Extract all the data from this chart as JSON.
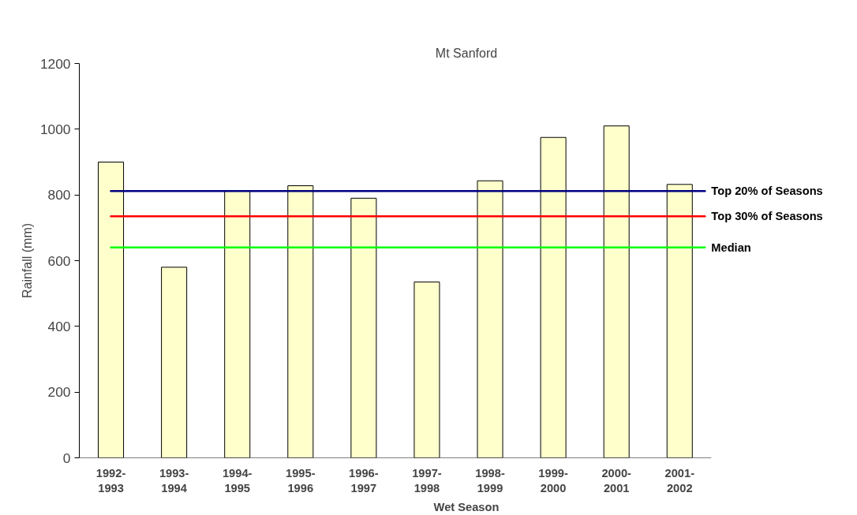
{
  "chart_data": {
    "type": "bar",
    "title": "Mt Sanford",
    "xlabel": "Wet Season",
    "ylabel": "Rainfall (mm)",
    "categories": [
      "1992-1993",
      "1993-1994",
      "1994-1995",
      "1995-1996",
      "1996-1997",
      "1997-1998",
      "1998-1999",
      "1999-2000",
      "2000-2001",
      "2001-2002"
    ],
    "values": [
      900,
      580,
      812,
      828,
      790,
      535,
      843,
      975,
      1010,
      832
    ],
    "color": "#ffffcc",
    "ylim": [
      0,
      1200
    ],
    "yticks": [
      0,
      200,
      400,
      600,
      800,
      1000,
      1200
    ],
    "grid": false,
    "ref_lines": [
      {
        "axis": "y",
        "value": 812,
        "label": "Top 20% of Seasons",
        "color": "#000080"
      },
      {
        "axis": "y",
        "value": 735,
        "label": "Top 30% of Seasons",
        "color": "#ff0000"
      },
      {
        "axis": "y",
        "value": 640,
        "label": "Median",
        "color": "#00ff00"
      }
    ]
  }
}
